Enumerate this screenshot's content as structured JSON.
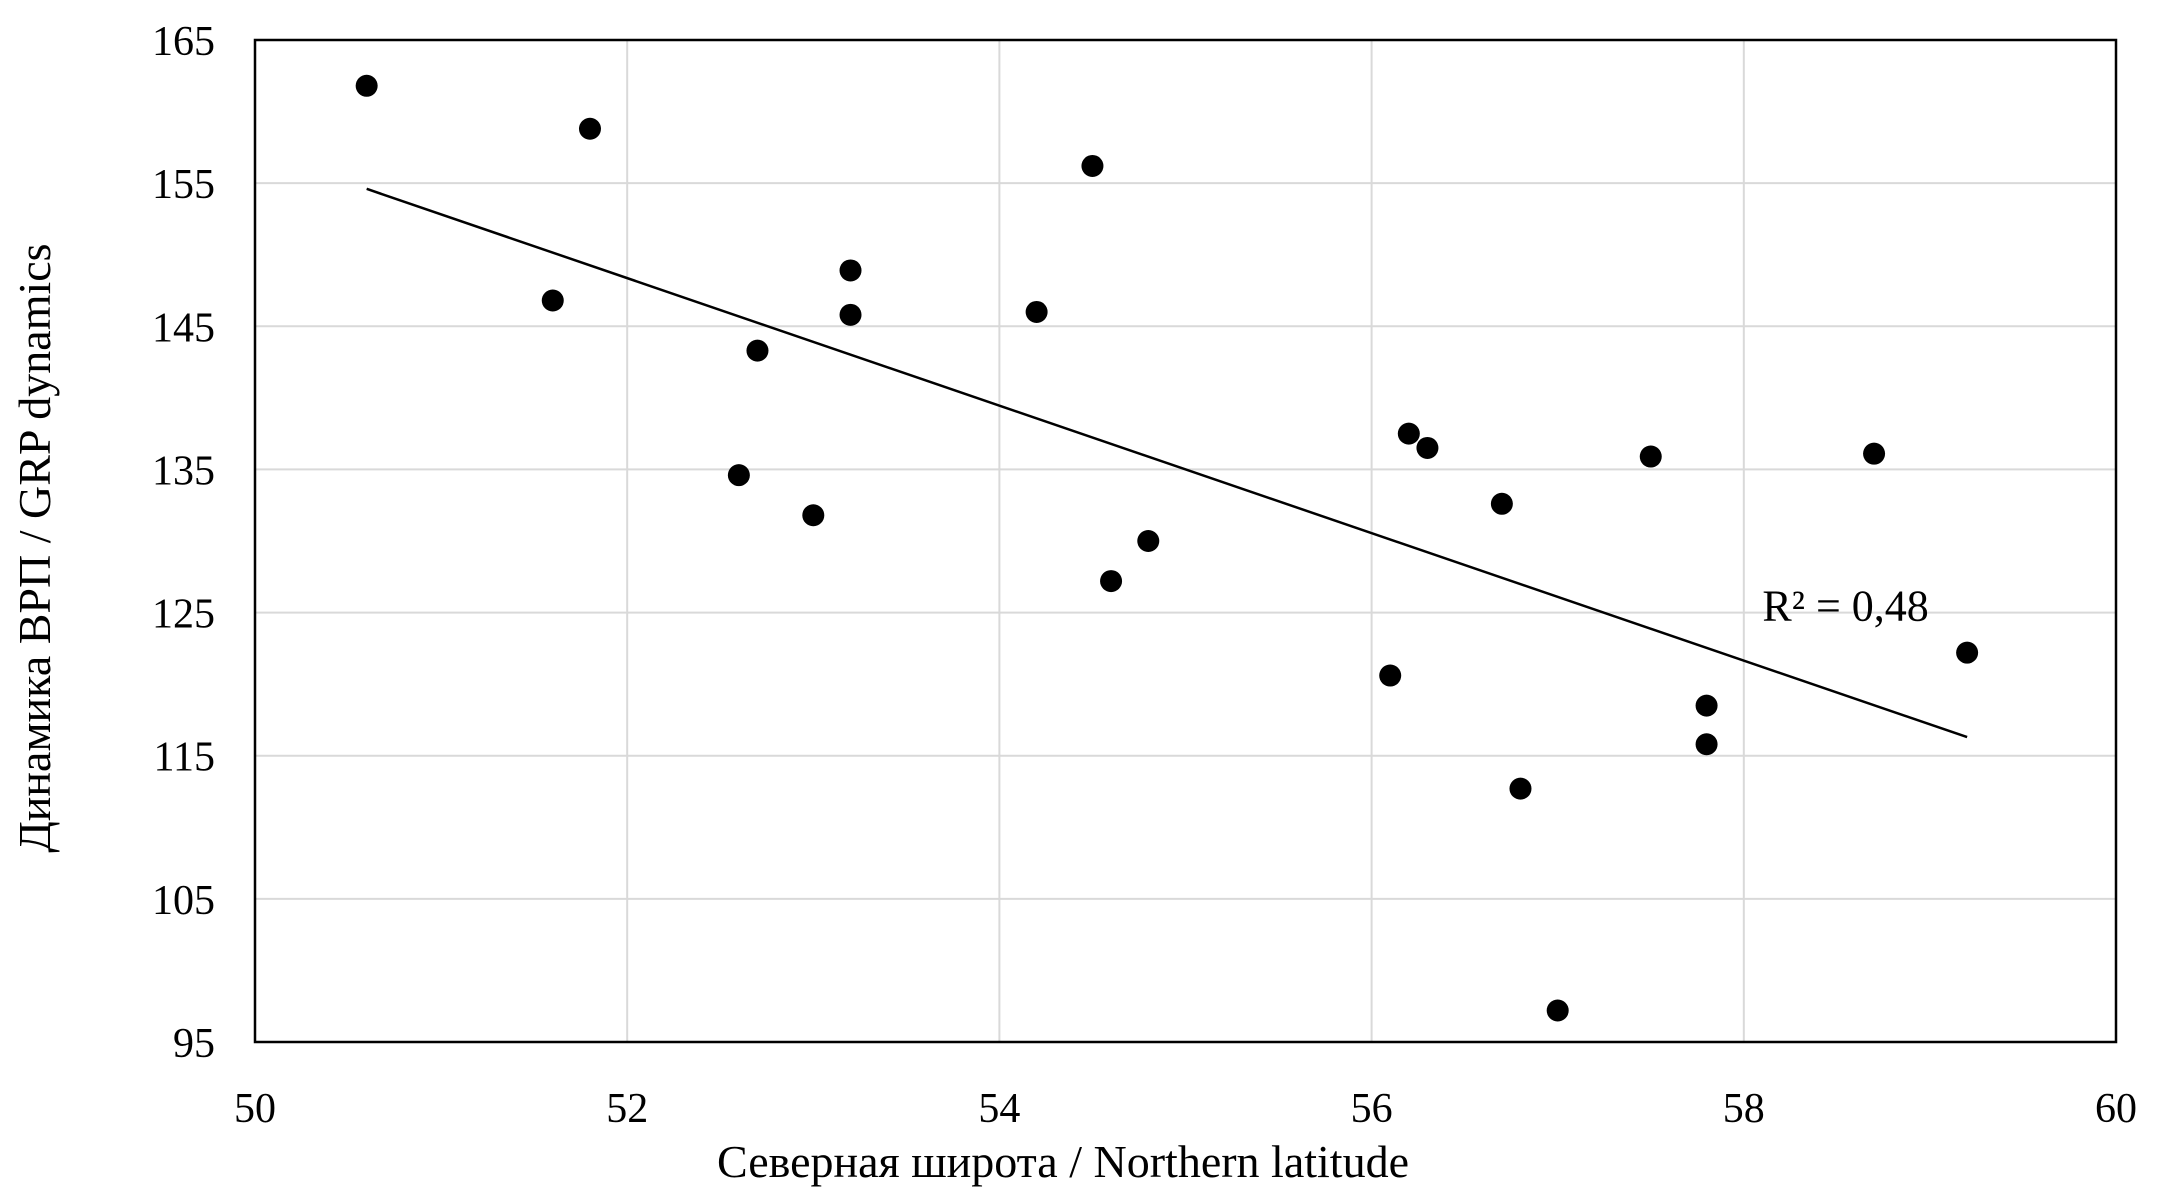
{
  "chart_data": {
    "type": "scatter",
    "title": "",
    "xlabel": "Северная широта / Northern latitude",
    "ylabel": "Динамика ВРП / GRP dynamics",
    "xlim": [
      50,
      60
    ],
    "ylim": [
      95,
      165
    ],
    "x_ticks": [
      "50",
      "52",
      "54",
      "56",
      "58",
      "60"
    ],
    "y_ticks": [
      "95",
      "105",
      "115",
      "125",
      "135",
      "145",
      "155",
      "165"
    ],
    "grid": true,
    "legend": "none",
    "marker_color": "#000000",
    "grid_color": "#d9d9d9",
    "series": [
      {
        "points": [
          {
            "x": 50.6,
            "y": 161.8
          },
          {
            "x": 51.6,
            "y": 146.8
          },
          {
            "x": 51.8,
            "y": 158.8
          },
          {
            "x": 52.6,
            "y": 134.6
          },
          {
            "x": 52.7,
            "y": 143.3
          },
          {
            "x": 53.0,
            "y": 131.8
          },
          {
            "x": 53.2,
            "y": 148.9
          },
          {
            "x": 53.2,
            "y": 145.8
          },
          {
            "x": 54.2,
            "y": 146.0
          },
          {
            "x": 54.5,
            "y": 156.2
          },
          {
            "x": 54.6,
            "y": 127.2
          },
          {
            "x": 54.8,
            "y": 130.0
          },
          {
            "x": 56.1,
            "y": 120.6
          },
          {
            "x": 56.2,
            "y": 137.5
          },
          {
            "x": 56.3,
            "y": 136.5
          },
          {
            "x": 56.7,
            "y": 132.6
          },
          {
            "x": 56.8,
            "y": 112.7
          },
          {
            "x": 57.0,
            "y": 97.2
          },
          {
            "x": 57.5,
            "y": 135.9
          },
          {
            "x": 57.8,
            "y": 118.5
          },
          {
            "x": 57.8,
            "y": 115.8
          },
          {
            "x": 58.7,
            "y": 136.1
          },
          {
            "x": 59.2,
            "y": 122.2
          }
        ]
      }
    ],
    "trendline": {
      "type": "linear",
      "x_start": 50.6,
      "y_start": 154.6,
      "x_end": 59.2,
      "y_end": 116.3
    },
    "annotations": [
      {
        "text": "R² = 0,48",
        "x": 58.1,
        "y": 125.5
      }
    ]
  }
}
